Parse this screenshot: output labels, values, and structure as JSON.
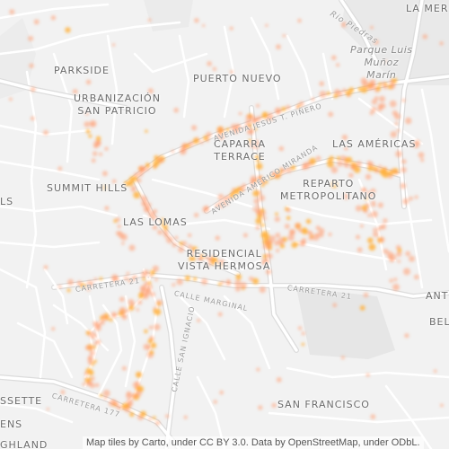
{
  "map": {
    "neighborhoods": {
      "parkside": "PARKSIDE",
      "puerto_nuevo": "PUERTO NUEVO",
      "urbanizacion_line1": "URBANIZACIÓN",
      "urbanizacion_line2": "SAN PATRICIO",
      "caparra_line1": "CAPARRA",
      "caparra_line2": "TERRACE",
      "las_americas": "LAS AMÉRICAS",
      "summit_hills": "SUMMIT HILLS",
      "reparto_line1": "REPARTO",
      "reparto_line2": "METROPOLITANO",
      "las_lomas": "LAS LOMAS",
      "residencial_line1": "RESIDENCIAL",
      "residencial_line2": "VISTA HERMOSA",
      "san_francisco": "SAN FRANCISCO",
      "la_merced_partial": "LA MER",
      "left_partial_ls": "LS",
      "left_partial_sette": "SSETTE",
      "left_partial_ens": "ENS",
      "left_partial_ghland": "GHLAND",
      "right_partial_ant": "ANT",
      "right_partial_bel": "BEL"
    },
    "park": {
      "line1": "Parque Luis",
      "line2": "Muñoz",
      "line3": "Marín"
    },
    "roads": {
      "rio_piedras": "Rio Piedras",
      "jesus_pinero": "AVENIDA JESÚS T. PIÑERO",
      "americo_miranda": "AVENIDA AMÉRICO MIRANDA",
      "carretera_21_left": "CARRETERA 21",
      "carretera_21_right": "CARRETERA 21",
      "calle_marginal": "CALLE MARGINAL",
      "calle_san_ignacio": "CALLE SAN IGNACIO",
      "carretera_177": "CARRETERA 177"
    },
    "attribution": "Map tiles by Carto, under CC BY 3.0. Data by OpenStreetMap, under ODbL."
  },
  "colors": {
    "background": "#f2f2f2",
    "road": "#ffffff",
    "major_road_edge": "#dcdcdc",
    "building": "#e4e4e4",
    "label": "#6b6b6b",
    "heat_light": "#ff9a6e",
    "heat_hot": "#ffb340"
  }
}
